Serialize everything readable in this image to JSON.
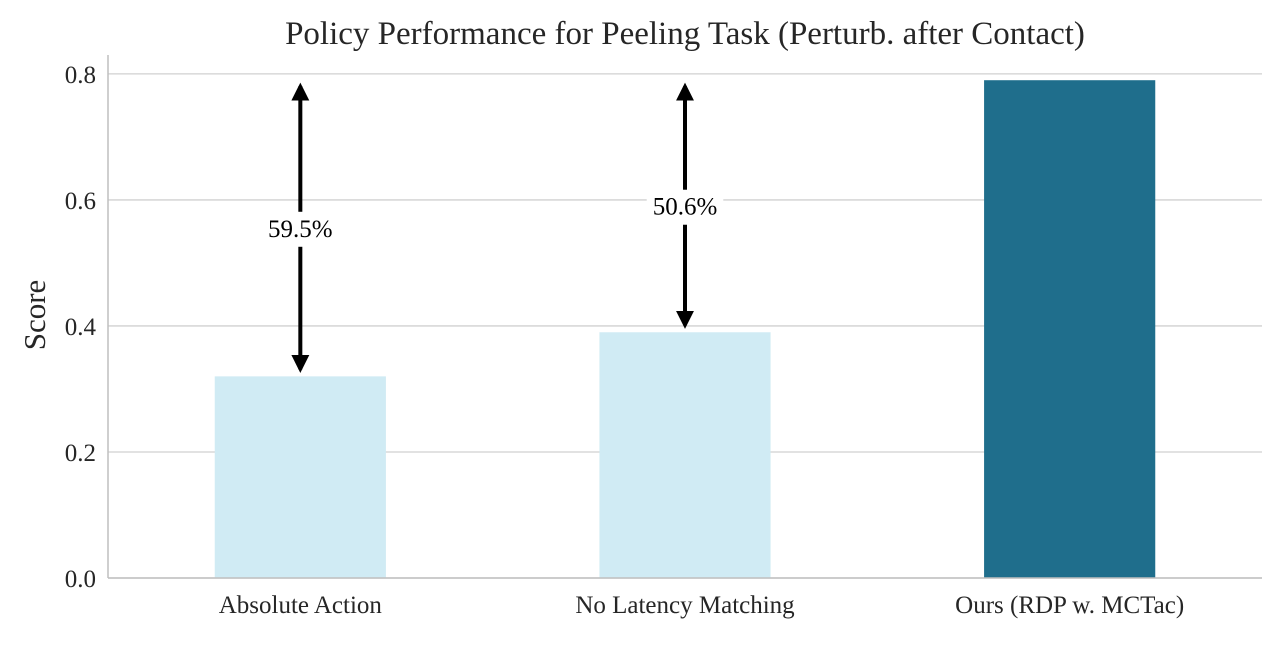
{
  "chart_data": {
    "type": "bar",
    "title": "Policy Performance for Peeling Task (Perturb. after Contact)",
    "xlabel": "",
    "ylabel": "Score",
    "categories": [
      "Absolute Action",
      "No Latency Matching",
      "Ours (RDP w. MCTac)"
    ],
    "values": [
      0.32,
      0.39,
      0.79
    ],
    "bar_colors": [
      "#d0ebf4",
      "#d0ebf4",
      "#1f6e8c"
    ],
    "ylim": [
      0,
      0.83
    ],
    "yticks": [
      0.0,
      0.2,
      0.4,
      0.6,
      0.8
    ],
    "ytick_labels": [
      "0.0",
      "0.2",
      "0.4",
      "0.6",
      "0.8"
    ],
    "grid": "horizontal",
    "annotations": [
      {
        "category": "Absolute Action",
        "from": 0.32,
        "to": 0.79,
        "label": "59.5%"
      },
      {
        "category": "No Latency Matching",
        "from": 0.39,
        "to": 0.79,
        "label": "50.6%"
      }
    ]
  }
}
